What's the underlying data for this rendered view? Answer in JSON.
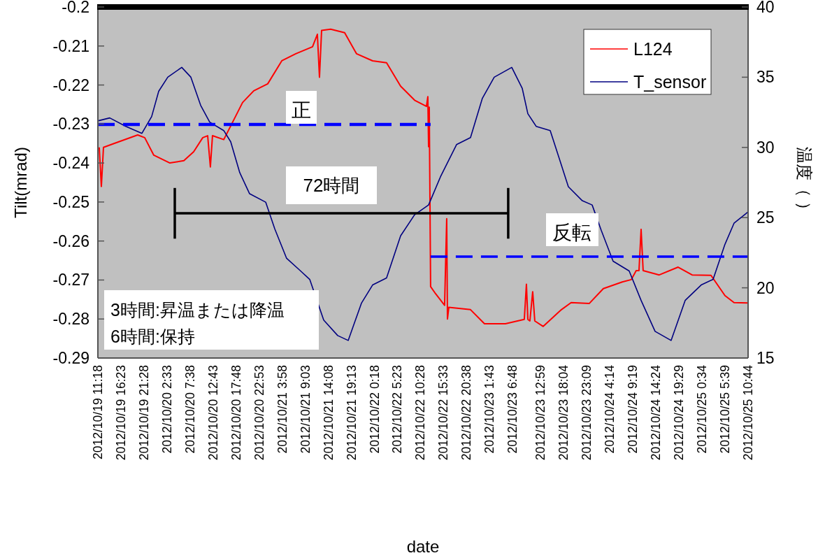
{
  "chart_data": {
    "type": "line",
    "xlabel": "date",
    "ylabel": "Tilt(mrad)",
    "y2label": "温度（ ）",
    "xlim": [
      "2012-10-19T11:18",
      "2012-10-25T10:44"
    ],
    "xticks": [
      {
        "value": "2012-10-19T11:18",
        "label": "2012/10/19 11:18"
      },
      {
        "value": "2012-10-19T16:23",
        "label": "2012/10/19 16:23"
      },
      {
        "value": "2012-10-19T21:28",
        "label": "2012/10/19 21:28"
      },
      {
        "value": "2012-10-20T02:33",
        "label": "2012/10/20 2:33"
      },
      {
        "value": "2012-10-20T07:38",
        "label": "2012/10/20 7:38"
      },
      {
        "value": "2012-10-20T12:43",
        "label": "2012/10/20 12:43"
      },
      {
        "value": "2012-10-20T17:48",
        "label": "2012/10/20 17:48"
      },
      {
        "value": "2012-10-20T22:53",
        "label": "2012/10/20 22:53"
      },
      {
        "value": "2012-10-21T03:58",
        "label": "2012/10/21 3:58"
      },
      {
        "value": "2012-10-21T09:03",
        "label": "2012/10/21 9:03"
      },
      {
        "value": "2012-10-21T14:08",
        "label": "2012/10/21 14:08"
      },
      {
        "value": "2012-10-21T19:13",
        "label": "2012/10/21 19:13"
      },
      {
        "value": "2012-10-22T00:18",
        "label": "2012/10/22 0:18"
      },
      {
        "value": "2012-10-22T05:23",
        "label": "2012/10/22 5:23"
      },
      {
        "value": "2012-10-22T10:28",
        "label": "2012/10/22 10:28"
      },
      {
        "value": "2012-10-22T15:33",
        "label": "2012/10/22 15:33"
      },
      {
        "value": "2012-10-22T20:38",
        "label": "2012/10/22 20:38"
      },
      {
        "value": "2012-10-23T01:43",
        "label": "2012/10/23 1:43"
      },
      {
        "value": "2012-10-23T06:48",
        "label": "2012/10/23 6:48"
      },
      {
        "value": "2012-10-23T12:59",
        "label": "2012/10/23 12:59"
      },
      {
        "value": "2012-10-23T18:04",
        "label": "2012/10/23 18:04"
      },
      {
        "value": "2012-10-23T23:09",
        "label": "2012/10/23 23:09"
      },
      {
        "value": "2012-10-24T04:14",
        "label": "2012/10/24 4:14"
      },
      {
        "value": "2012-10-24T09:19",
        "label": "2012/10/24 9:19"
      },
      {
        "value": "2012-10-24T14:24",
        "label": "2012/10/24 14:24"
      },
      {
        "value": "2012-10-24T19:29",
        "label": "2012/10/24 19:29"
      },
      {
        "value": "2012-10-25T00:34",
        "label": "2012/10/25 0:34"
      },
      {
        "value": "2012-10-25T05:39",
        "label": "2012/10/25 5:39"
      },
      {
        "value": "2012-10-25T10:44",
        "label": "2012/10/25 10:44"
      }
    ],
    "ylim": [
      -0.29,
      -0.2
    ],
    "yticks": [
      -0.29,
      -0.28,
      -0.27,
      -0.26,
      -0.25,
      -0.24,
      -0.23,
      -0.22,
      -0.21,
      -0.2
    ],
    "y2lim": [
      15,
      40
    ],
    "y2ticks": [
      15,
      20,
      25,
      30,
      35,
      40
    ],
    "grid": false,
    "legend": "top right",
    "ref_lines": [
      {
        "axis": "y",
        "value": -0.2,
        "color": "#000000"
      }
    ],
    "series": [
      {
        "name": "L124",
        "color": "#ff0000",
        "x": [
          "2012-10-19T11:36",
          "2012-10-19T12:04",
          "2012-10-19T12:32",
          "2012-10-19T14:51",
          "2012-10-19T20:05",
          "2012-10-19T21:38",
          "2012-10-19T23:38",
          "2012-10-20T03:11",
          "2012-10-20T06:16",
          "2012-10-20T08:26",
          "2012-10-20T10:26",
          "2012-10-20T11:31",
          "2012-10-20T12:07",
          "2012-10-20T12:35",
          "2012-10-20T15:04",
          "2012-10-20T16:36",
          "2012-10-20T19:13",
          "2012-10-20T21:41",
          "2012-10-21T00:46",
          "2012-10-21T03:52",
          "2012-10-21T06:57",
          "2012-10-21T10:39",
          "2012-10-21T11:43",
          "2012-10-21T12:11",
          "2012-10-21T12:39",
          "2012-10-21T14:39",
          "2012-10-21T17:44",
          "2012-10-21T20:22",
          "2012-10-21T23:54",
          "2012-10-22T02:59",
          "2012-10-22T06:05",
          "2012-10-22T09:10",
          "2012-10-22T11:47",
          "2012-10-22T12:05",
          "2012-10-22T12:15",
          "2012-10-22T12:24",
          "2012-10-22T12:42",
          "2012-10-22T13:47",
          "2012-10-22T15:47",
          "2012-10-22T16:15",
          "2012-10-22T16:25",
          "2012-10-22T16:43",
          "2012-10-22T21:30",
          "2012-10-23T00:35",
          "2012-10-23T05:12",
          "2012-10-23T09:22",
          "2012-10-23T09:50",
          "2012-10-23T10:09",
          "2012-10-23T10:36",
          "2012-10-23T11:13",
          "2012-10-23T11:41",
          "2012-10-23T13:32",
          "2012-10-23T17:33",
          "2012-10-23T19:42",
          "2012-10-23T23:43",
          "2012-10-24T02:48",
          "2012-10-24T06:58",
          "2012-10-24T08:58",
          "2012-10-24T10:03",
          "2012-10-24T10:40",
          "2012-10-24T11:08",
          "2012-10-24T11:35",
          "2012-10-24T15:08",
          "2012-10-24T19:18",
          "2012-10-24T22:23",
          "2012-10-25T02:33",
          "2012-10-25T05:38",
          "2012-10-25T07:38",
          "2012-10-25T10:43"
        ],
        "values": [
          -0.236,
          -0.246,
          -0.236,
          -0.235,
          -0.2328,
          -0.2335,
          -0.238,
          -0.24,
          -0.2394,
          -0.2371,
          -0.2335,
          -0.233,
          -0.241,
          -0.233,
          -0.234,
          -0.2305,
          -0.2245,
          -0.2215,
          -0.2197,
          -0.2138,
          -0.212,
          -0.2102,
          -0.207,
          -0.218,
          -0.206,
          -0.2057,
          -0.2066,
          -0.212,
          -0.2138,
          -0.2143,
          -0.2203,
          -0.2239,
          -0.2255,
          -0.223,
          -0.2358,
          -0.2257,
          -0.2717,
          -0.2735,
          -0.2765,
          -0.2543,
          -0.28,
          -0.277,
          -0.2776,
          -0.2812,
          -0.2812,
          -0.2801,
          -0.2711,
          -0.2801,
          -0.2805,
          -0.273,
          -0.2805,
          -0.2819,
          -0.2776,
          -0.2758,
          -0.276,
          -0.2722,
          -0.2705,
          -0.2699,
          -0.2676,
          -0.2676,
          -0.257,
          -0.2676,
          -0.2687,
          -0.2667,
          -0.2687,
          -0.2688,
          -0.274,
          -0.2758,
          -0.2759
        ]
      },
      {
        "name": "T_sensor",
        "color": "#000080",
        "axis": "y2",
        "x": [
          "2012-10-19T11:27",
          "2012-10-19T13:55",
          "2012-10-19T17:28",
          "2012-10-19T21:01",
          "2012-10-19T23:10",
          "2012-10-20T00:43",
          "2012-10-20T02:43",
          "2012-10-20T05:48",
          "2012-10-20T07:49",
          "2012-10-20T09:58",
          "2012-10-20T11:58",
          "2012-10-20T15:04",
          "2012-10-20T16:36",
          "2012-10-20T18:36",
          "2012-10-20T20:46",
          "2012-10-21T00:19",
          "2012-10-21T02:19",
          "2012-10-21T04:56",
          "2012-10-21T08:01",
          "2012-10-21T10:02",
          "2012-10-21T13:07",
          "2012-10-21T16:12",
          "2012-10-21T18:31",
          "2012-10-21T21:26",
          "2012-10-21T23:54",
          "2012-10-22T02:59",
          "2012-10-22T06:05",
          "2012-10-22T09:10",
          "2012-10-22T12:15",
          "2012-10-22T14:52",
          "2012-10-22T18:25",
          "2012-10-22T21:30",
          "2012-10-23T00:07",
          "2012-10-23T02:44",
          "2012-10-23T06:36",
          "2012-10-23T08:55",
          "2012-10-23T10:09",
          "2012-10-23T11:59",
          "2012-10-23T15:05",
          "2012-10-23T17:05",
          "2012-10-23T19:05",
          "2012-10-23T22:10",
          "2012-10-24T00:20",
          "2012-10-24T02:20",
          "2012-10-24T04:57",
          "2012-10-24T08:30",
          "2012-10-24T11:08",
          "2012-10-24T14:13",
          "2012-10-24T17:45",
          "2012-10-24T20:51",
          "2012-10-25T00:23",
          "2012-10-25T03:01",
          "2012-10-25T05:38",
          "2012-10-25T07:38",
          "2012-10-25T10:43"
        ],
        "values": [
          31.9,
          32.1,
          31.5,
          31.0,
          32.2,
          34.0,
          35.0,
          35.7,
          35.0,
          33.0,
          31.8,
          31.2,
          30.4,
          28.2,
          26.7,
          26.1,
          24.2,
          22.1,
          21.2,
          20.6,
          17.7,
          16.6,
          16.25,
          18.9,
          20.2,
          20.7,
          23.7,
          25.2,
          25.9,
          27.9,
          30.2,
          30.7,
          33.5,
          35.0,
          35.7,
          34.2,
          32.4,
          31.5,
          31.2,
          29.2,
          27.2,
          26.2,
          25.9,
          24.1,
          21.9,
          21.2,
          19.1,
          16.9,
          16.25,
          19.1,
          20.2,
          20.6,
          23.1,
          24.6,
          25.4
        ]
      },
      {
        "color": "#0000ff",
        "line_style": "dashed",
        "x": [
          "2012-10-19T11:18",
          "2012-10-22T12:42"
        ],
        "values": [
          -0.2301,
          -0.2301
        ]
      },
      {
        "color": "#0000ff",
        "line_style": "dashed",
        "x": [
          "2012-10-22T12:42",
          "2012-10-25T10:44"
        ],
        "values": [
          -0.264,
          -0.264
        ]
      },
      {
        "color": "#000000",
        "x": [
          "2012-10-20T04:16",
          "2012-10-23T05:49"
        ],
        "values": [
          -0.2529,
          -0.2529
        ],
        "errors": [
          0.0065,
          0.0065
        ]
      }
    ],
    "annotations": [
      "正",
      "72時間",
      "反転",
      "3時間:昇温または降温",
      "6時間:保持"
    ]
  }
}
